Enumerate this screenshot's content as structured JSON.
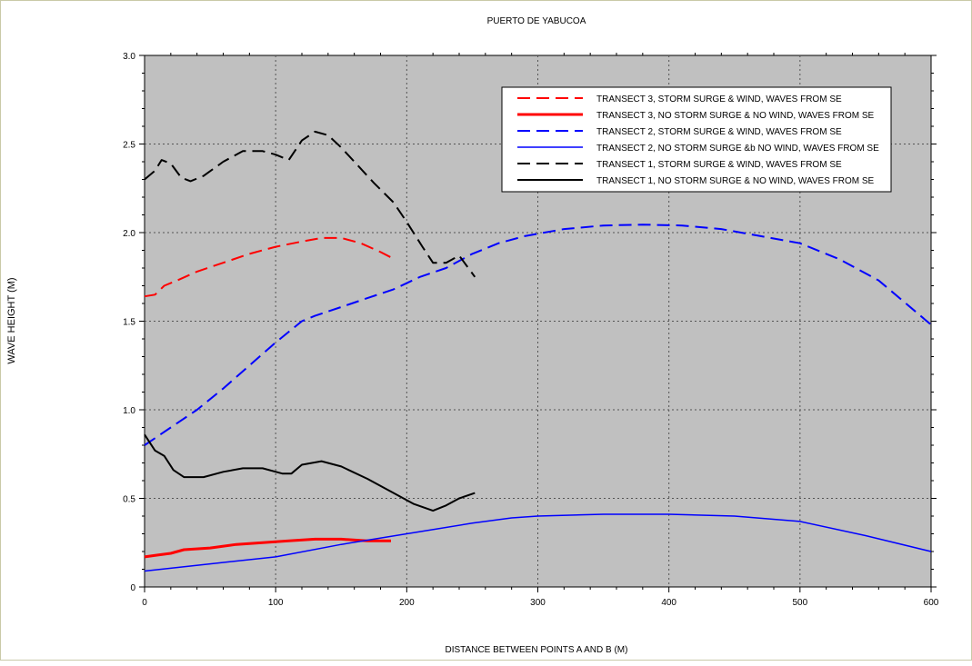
{
  "chart_data": {
    "type": "line",
    "title": "PUERTO DE YABUCOA",
    "xlabel": "DISTANCE BETWEEN POINTS A AND B (M)",
    "ylabel": "WAVE HEIGHT (M)",
    "xlim": [
      0,
      600
    ],
    "ylim": [
      0,
      3.0
    ],
    "x_ticks": [
      0,
      100,
      200,
      300,
      400,
      500,
      600
    ],
    "y_ticks": [
      0,
      0.5,
      1.0,
      1.5,
      2.0,
      2.5,
      3.0
    ],
    "x_tick_labels": [
      "0",
      "100",
      "200",
      "300",
      "400",
      "500",
      "600"
    ],
    "y_tick_labels": [
      "0",
      "0.5",
      "1.0",
      "1.5",
      "2.0",
      "2.5",
      "3.0"
    ],
    "grid": true,
    "legend_position": "top-right",
    "plot_background": "#c0c0c0",
    "series": [
      {
        "name": "TRANSECT 3, STORM SURGE & WIND, WAVES FROM SE",
        "color": "#ff0000",
        "style": "dashed",
        "width": 2,
        "x": [
          0,
          8,
          15,
          25,
          40,
          60,
          80,
          100,
          120,
          135,
          150,
          165,
          180,
          188
        ],
        "y": [
          1.64,
          1.65,
          1.7,
          1.73,
          1.78,
          1.83,
          1.88,
          1.92,
          1.95,
          1.97,
          1.97,
          1.94,
          1.89,
          1.86
        ]
      },
      {
        "name": "TRANSECT 3, NO STORM SURGE & NO WIND, WAVES FROM SE",
        "color": "#ff0000",
        "style": "solid",
        "width": 3,
        "x": [
          0,
          10,
          20,
          30,
          50,
          70,
          90,
          110,
          130,
          150,
          170,
          188
        ],
        "y": [
          0.17,
          0.18,
          0.19,
          0.21,
          0.22,
          0.24,
          0.25,
          0.26,
          0.27,
          0.27,
          0.26,
          0.26
        ]
      },
      {
        "name": "TRANSECT 2, STORM SURGE & WIND, WAVES FROM SE",
        "color": "#0000ff",
        "style": "dashed",
        "width": 2,
        "x": [
          0,
          20,
          40,
          60,
          80,
          100,
          120,
          130,
          150,
          170,
          190,
          210,
          230,
          250,
          270,
          290,
          320,
          350,
          380,
          410,
          440,
          470,
          500,
          530,
          560,
          600
        ],
        "y": [
          0.8,
          0.9,
          1.0,
          1.12,
          1.25,
          1.38,
          1.5,
          1.53,
          1.58,
          1.63,
          1.68,
          1.75,
          1.8,
          1.88,
          1.94,
          1.98,
          2.02,
          2.04,
          2.045,
          2.04,
          2.02,
          1.98,
          1.94,
          1.85,
          1.73,
          1.48
        ]
      },
      {
        "name": "TRANSECT 2, NO STORM SURGE &b NO WIND, WAVES FROM SE",
        "color": "#0000ff",
        "style": "solid",
        "width": 1.5,
        "x": [
          0,
          50,
          100,
          150,
          200,
          250,
          280,
          300,
          350,
          400,
          450,
          500,
          550,
          600
        ],
        "y": [
          0.09,
          0.13,
          0.17,
          0.24,
          0.3,
          0.36,
          0.39,
          0.4,
          0.41,
          0.41,
          0.4,
          0.37,
          0.29,
          0.2
        ]
      },
      {
        "name": "TRANSECT 1, STORM SURGE & WIND, WAVES FROM SE",
        "color": "#000000",
        "style": "dashed",
        "width": 2,
        "x": [
          0,
          8,
          13,
          20,
          28,
          35,
          45,
          60,
          75,
          90,
          100,
          110,
          120,
          130,
          140,
          150,
          160,
          175,
          190,
          200,
          212,
          220,
          230,
          240,
          252
        ],
        "y": [
          2.3,
          2.35,
          2.41,
          2.39,
          2.31,
          2.29,
          2.32,
          2.4,
          2.46,
          2.46,
          2.44,
          2.41,
          2.52,
          2.57,
          2.55,
          2.48,
          2.4,
          2.28,
          2.17,
          2.06,
          1.92,
          1.83,
          1.83,
          1.87,
          1.75
        ]
      },
      {
        "name": "TRANSECT 1, NO STORM SURGE & NO WIND, WAVES FROM SE",
        "color": "#000000",
        "style": "solid",
        "width": 2,
        "x": [
          0,
          8,
          15,
          22,
          30,
          45,
          60,
          75,
          90,
          105,
          112,
          120,
          135,
          150,
          170,
          190,
          205,
          220,
          230,
          240,
          252
        ],
        "y": [
          0.86,
          0.77,
          0.74,
          0.66,
          0.62,
          0.62,
          0.65,
          0.67,
          0.67,
          0.64,
          0.64,
          0.69,
          0.71,
          0.68,
          0.61,
          0.53,
          0.47,
          0.43,
          0.46,
          0.5,
          0.53
        ]
      }
    ]
  }
}
